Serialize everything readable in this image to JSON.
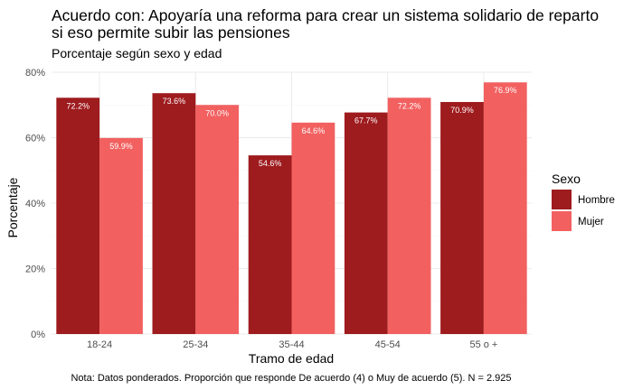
{
  "chart_data": {
    "type": "bar",
    "title": "Acuerdo con: Apoyaría una reforma para crear un sistema solidario de reparto si eso permite subir las pensiones",
    "title_lines": [
      "Acuerdo con: Apoyaría una reforma para crear un sistema solidario de reparto",
      "si eso permite subir las pensiones"
    ],
    "subtitle": "Porcentaje según sexo y edad",
    "xlabel": "Tramo de edad",
    "ylabel": "Porcentaje",
    "caption": "Nota: Datos ponderados. Proporción que responde De acuerdo (4) o Muy de acuerdo (5). N = 2.925",
    "categories": [
      "18-24",
      "25-34",
      "35-44",
      "45-54",
      "55 o +"
    ],
    "series": [
      {
        "name": "Hombre",
        "color": "#9e1b1e",
        "values": [
          72.2,
          73.6,
          54.6,
          67.7,
          70.9
        ],
        "labels": [
          "72.2%",
          "73.6%",
          "54.6%",
          "67.7%",
          "70.9%"
        ]
      },
      {
        "name": "Mujer",
        "color": "#f26060",
        "values": [
          59.9,
          70.0,
          64.6,
          72.2,
          76.9
        ],
        "labels": [
          "59.9%",
          "70.0%",
          "64.6%",
          "72.2%",
          "76.9%"
        ]
      }
    ],
    "ylim": [
      0,
      80
    ],
    "yticks": [
      0,
      20,
      40,
      60,
      80
    ],
    "ytick_labels": [
      "0%",
      "20%",
      "40%",
      "60%",
      "80%"
    ],
    "grid": true,
    "legend": {
      "title": "Sexo",
      "position": "right"
    }
  }
}
